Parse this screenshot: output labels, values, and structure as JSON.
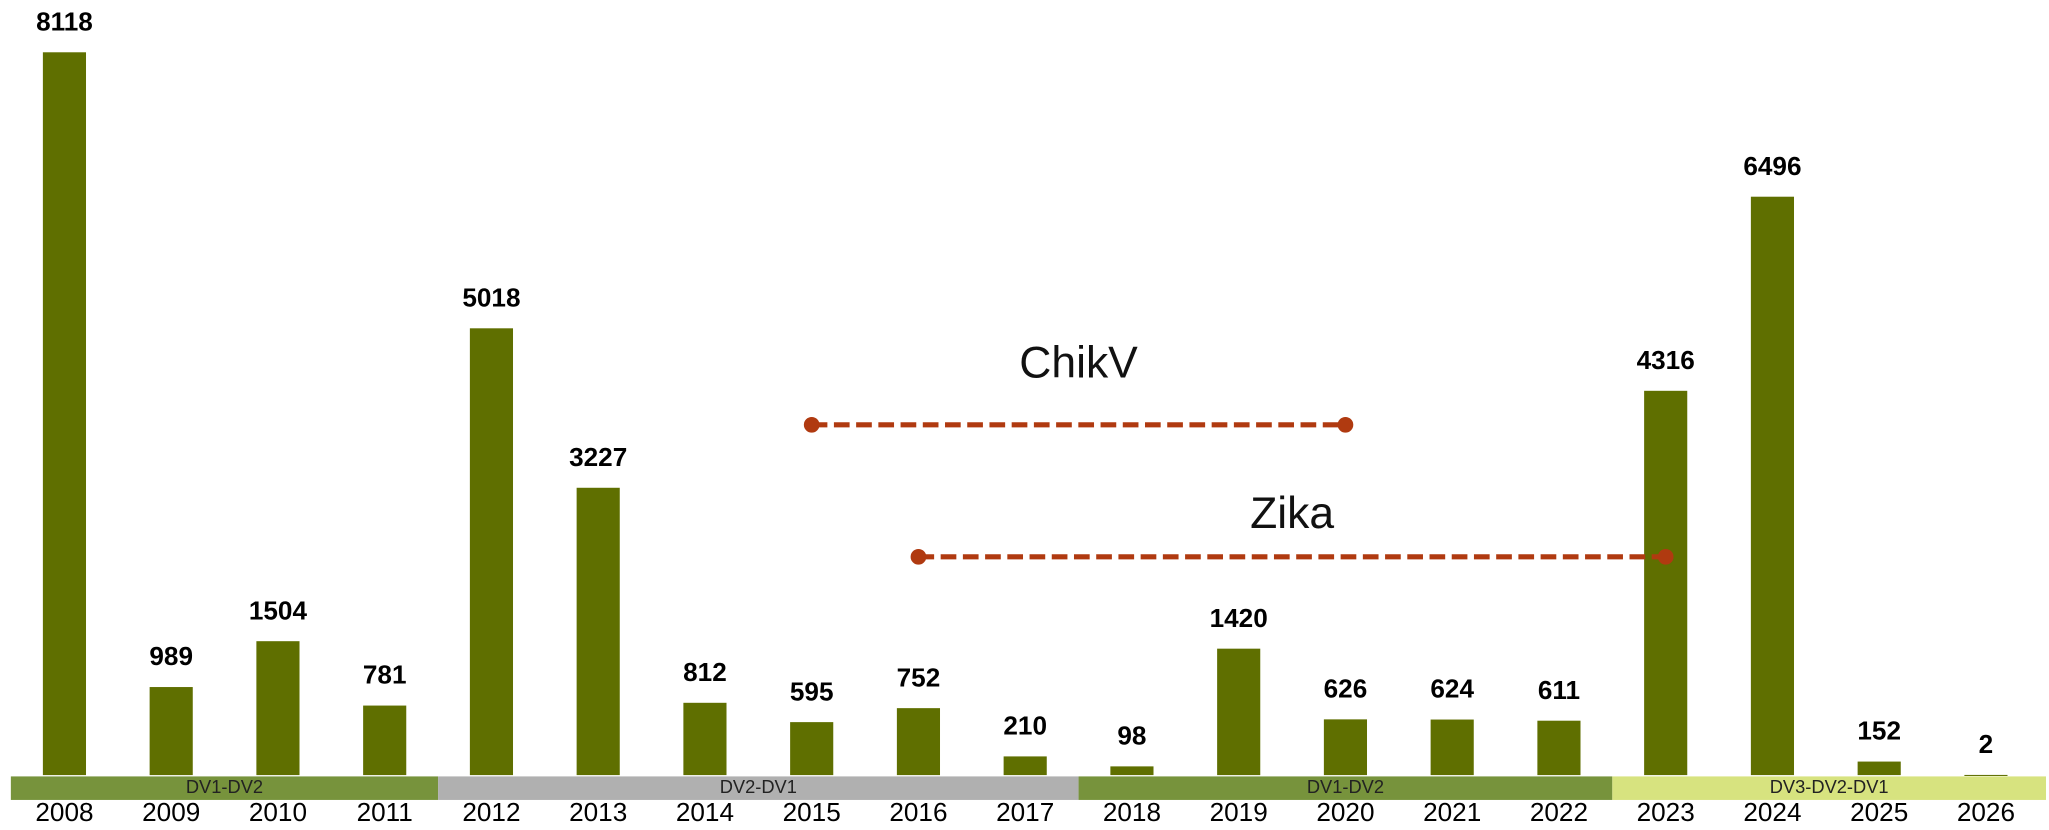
{
  "chart_data": {
    "type": "bar",
    "categories": [
      "2008",
      "2009",
      "2010",
      "2011",
      "2012",
      "2013",
      "2014",
      "2015",
      "2016",
      "2017",
      "2018",
      "2019",
      "2020",
      "2021",
      "2022",
      "2023",
      "2024",
      "2025",
      "2026"
    ],
    "values": [
      8118,
      989,
      1504,
      781,
      5018,
      3227,
      812,
      595,
      752,
      210,
      98,
      1420,
      626,
      624,
      611,
      4316,
      6496,
      152,
      2
    ],
    "color": "#5f6f00",
    "periods": [
      {
        "label": "DV1-DV2",
        "start": "2008",
        "end": "2011",
        "color": "#77933c"
      },
      {
        "label": "DV2-DV1",
        "start": "2012",
        "end": "2017",
        "color": "#b0b0b0"
      },
      {
        "label": "DV1-DV2",
        "start": "2018",
        "end": "2022",
        "color": "#77933c"
      },
      {
        "label": "DV3-DV2-DV1",
        "start": "2023",
        "end": "2026",
        "color": "#d7e37f"
      }
    ],
    "annotations": [
      {
        "label": "ChikV",
        "start": "2015",
        "end": "2020",
        "color": "#b03a10"
      },
      {
        "label": "Zika",
        "start": "2016",
        "end": "2023",
        "color": "#b03a10"
      }
    ]
  }
}
